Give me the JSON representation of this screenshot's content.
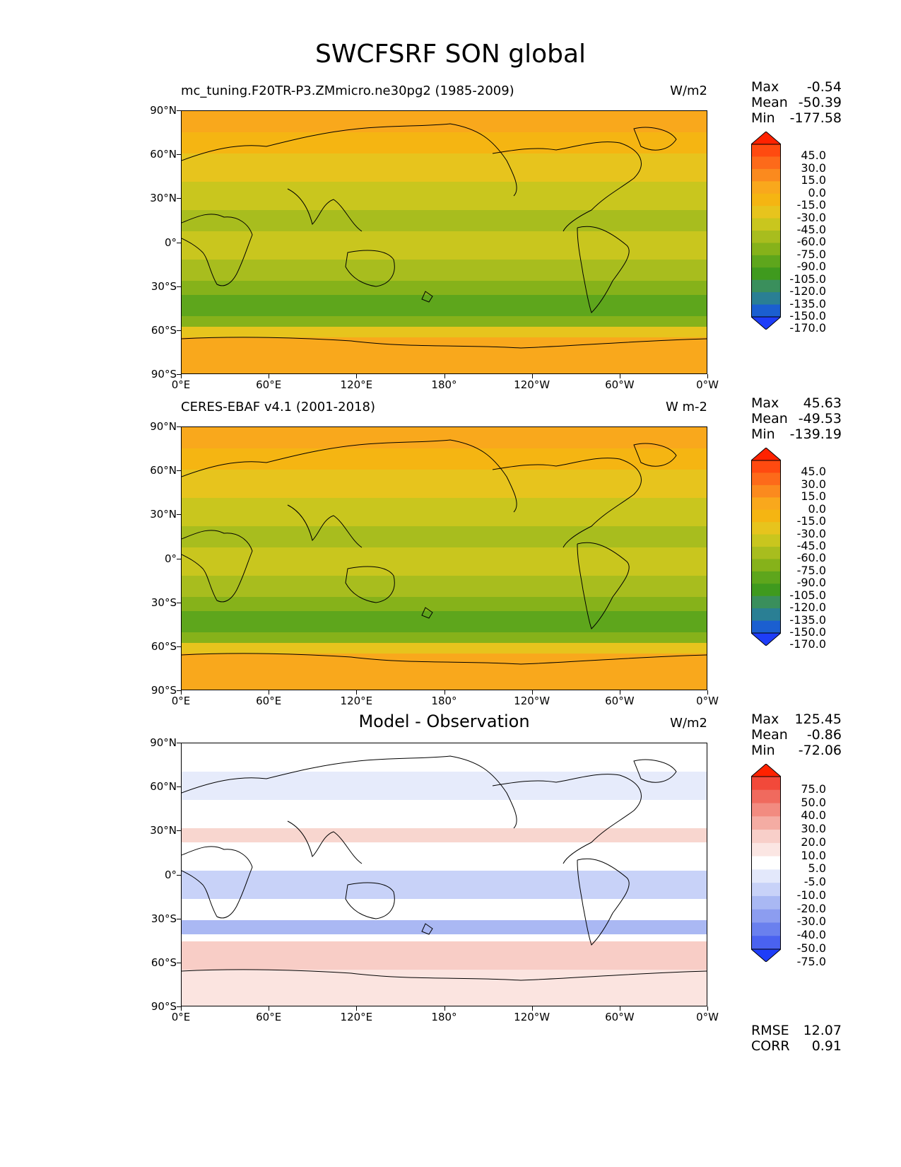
{
  "figure_title": "SWCFSRF SON global",
  "lat_labels": [
    "90°N",
    "60°N",
    "30°N",
    "0°",
    "30°S",
    "60°S",
    "90°S"
  ],
  "lon_labels": [
    "0°E",
    "60°E",
    "120°E",
    "180°",
    "120°W",
    "60°W",
    "0°W"
  ],
  "panels": [
    {
      "title": "mc_tuning.F20TR-P3.ZMmicro.ne30pg2 (1985-2009)",
      "units": "W/m2",
      "stats": {
        "max_label": "Max",
        "max": "-0.54",
        "mean_label": "Mean",
        "mean": "-50.39",
        "min_label": "Min",
        "min": "-177.58"
      },
      "colorbar_levels": [
        "45.0",
        "30.0",
        "15.0",
        "0.0",
        "-15.0",
        "-30.0",
        "-45.0",
        "-60.0",
        "-75.0",
        "-90.0",
        "-105.0",
        "-120.0",
        "-135.0",
        "-150.0",
        "-170.0"
      ],
      "colorbar_colors": [
        "#ff2200",
        "#ff4a10",
        "#fd6a1a",
        "#fb8a1e",
        "#f9a81c",
        "#f5b512",
        "#e7c41d",
        "#c9c61e",
        "#a8bd1e",
        "#86b21a",
        "#5ea61c",
        "#3f9a1e",
        "#3a8f5c",
        "#2a7f94",
        "#1b5fd0",
        "#1e3df8"
      ]
    },
    {
      "title": "CERES-EBAF v4.1 (2001-2018)",
      "units": "W m-2",
      "stats": {
        "max_label": "Max",
        "max": "45.63",
        "mean_label": "Mean",
        "mean": "-49.53",
        "min_label": "Min",
        "min": "-139.19"
      },
      "colorbar_levels": [
        "45.0",
        "30.0",
        "15.0",
        "0.0",
        "-15.0",
        "-30.0",
        "-45.0",
        "-60.0",
        "-75.0",
        "-90.0",
        "-105.0",
        "-120.0",
        "-135.0",
        "-150.0",
        "-170.0"
      ],
      "colorbar_colors": [
        "#ff2200",
        "#ff4a10",
        "#fd6a1a",
        "#fb8a1e",
        "#f9a81c",
        "#f5b512",
        "#e7c41d",
        "#c9c61e",
        "#a8bd1e",
        "#86b21a",
        "#5ea61c",
        "#3f9a1e",
        "#3a8f5c",
        "#2a7f94",
        "#1b5fd0",
        "#1e3df8"
      ]
    },
    {
      "title": "Model - Observation",
      "units": "W/m2",
      "stats": {
        "max_label": "Max",
        "max": "125.45",
        "mean_label": "Mean",
        "mean": "-0.86",
        "min_label": "Min",
        "min": "-72.06"
      },
      "colorbar_levels": [
        "75.0",
        "50.0",
        "40.0",
        "30.0",
        "20.0",
        "10.0",
        "5.0",
        "-5.0",
        "-10.0",
        "-20.0",
        "-30.0",
        "-40.0",
        "-50.0",
        "-75.0"
      ],
      "colorbar_colors": [
        "#ff2200",
        "#f2493a",
        "#f06a5e",
        "#f28b80",
        "#f4aca3",
        "#f8cfc9",
        "#fbe6e3",
        "#ffffff",
        "#e3e8fb",
        "#c8d2f8",
        "#a9b8f3",
        "#8c9df0",
        "#6a80ee",
        "#4a62f0",
        "#1e3df8"
      ],
      "bottom_stats": {
        "rmse_label": "RMSE",
        "rmse": "12.07",
        "corr_label": "CORR",
        "corr": "0.91"
      }
    }
  ]
}
